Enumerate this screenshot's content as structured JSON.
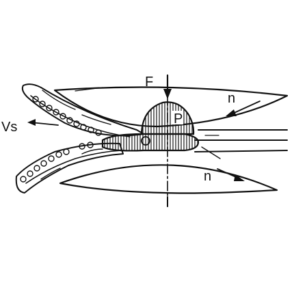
{
  "diagram": {
    "labels": {
      "force": "F",
      "pressure": "P",
      "speed": "Vs",
      "rotation_top": "n",
      "rotation_bottom": "n",
      "center_line": "I"
    },
    "colors": {
      "ink": "#111111",
      "background": "#ffffff"
    }
  }
}
